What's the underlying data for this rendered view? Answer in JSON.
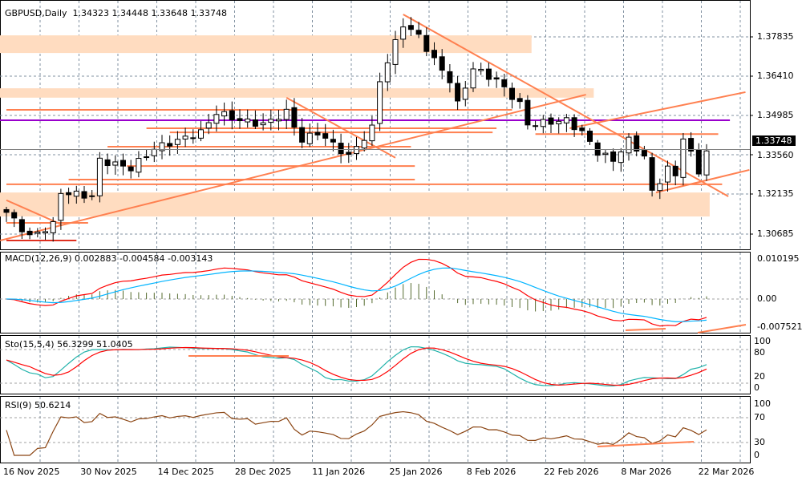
{
  "header": {
    "symbol": "GBPUSD,Daily",
    "open": "1.34323",
    "high": "1.34448",
    "low": "1.33648",
    "close": "1.33748"
  },
  "price_axis": {
    "ticks": [
      "1.37835",
      "1.36410",
      "1.34985",
      "1.33560",
      "1.32135",
      "1.30685"
    ],
    "current": "1.33748"
  },
  "macd": {
    "label": "MACD(12,26,9) 0.002883 -0.004584 -0.003143",
    "ticks": [
      "0.010195",
      "0.00",
      "-0.007521"
    ]
  },
  "sto": {
    "label": "Sto(15,5,4) 56.3299 51.0405",
    "ticks": [
      "100",
      "80",
      "20",
      "0"
    ]
  },
  "rsi": {
    "label": "RSI(9) 50.6214",
    "ticks": [
      "100",
      "70",
      "30",
      "0"
    ]
  },
  "dates": [
    "16 Nov 2025",
    "30 Nov 2025",
    "14 Dec 2025",
    "28 Dec 2025",
    "11 Jan 2026",
    "25 Jan 2026",
    "8 Feb 2026",
    "22 Feb 2026",
    "8 Mar 2026",
    "22 Mar 2026"
  ],
  "colors": {
    "bull": "#ffffff",
    "bear": "#000000",
    "annot": "#ff8050",
    "zone": "#ffdcc0",
    "purple": "#9900cc",
    "macd_main": "#ff0000",
    "macd_signal": "#00b4ff",
    "hist": "#556b2f",
    "sto_k": "#20b2aa",
    "sto_d": "#ff0000",
    "rsi": "#8b4513"
  },
  "chart_data": {
    "type": "candlestick",
    "title": "GBPUSD,Daily",
    "ylim": [
      1.3035,
      1.3915
    ],
    "close_keypoints": [
      [
        0,
        1.3147
      ],
      [
        3,
        1.3059
      ],
      [
        6,
        1.3102
      ],
      [
        7,
        1.322
      ],
      [
        11,
        1.3205
      ],
      [
        12,
        1.3336
      ],
      [
        16,
        1.3307
      ],
      [
        19,
        1.3379
      ],
      [
        25,
        1.3437
      ],
      [
        27,
        1.351
      ],
      [
        30,
        1.3481
      ],
      [
        33,
        1.3466
      ],
      [
        36,
        1.351
      ],
      [
        38,
        1.3408
      ],
      [
        40,
        1.3437
      ],
      [
        44,
        1.335
      ],
      [
        47,
        1.3452
      ],
      [
        48,
        1.3626
      ],
      [
        51,
        1.383
      ],
      [
        53,
        1.3786
      ],
      [
        55,
        1.3699
      ],
      [
        57,
        1.3626
      ],
      [
        58,
        1.3539
      ],
      [
        60,
        1.367
      ],
      [
        63,
        1.3626
      ],
      [
        66,
        1.3539
      ],
      [
        67,
        1.3466
      ],
      [
        72,
        1.3481
      ],
      [
        74,
        1.3437
      ],
      [
        76,
        1.3365
      ],
      [
        78,
        1.3336
      ],
      [
        80,
        1.3408
      ],
      [
        82,
        1.335
      ],
      [
        83,
        1.3219
      ],
      [
        85,
        1.3307
      ],
      [
        86,
        1.3278
      ],
      [
        87,
        1.3423
      ],
      [
        89,
        1.3292
      ],
      [
        90,
        1.3374
      ]
    ],
    "zones": [
      [
        1.3789,
        1.3725,
        0,
        67.5
      ],
      [
        1.3597,
        1.3563,
        0,
        75.5
      ],
      [
        1.3219,
        1.3132,
        0,
        90.4
      ]
    ],
    "hlines": [
      [
        1.3519,
        0,
        65
      ],
      [
        1.3452,
        18,
        63
      ],
      [
        1.3437,
        21,
        62.5
      ],
      [
        1.3385,
        13,
        52
      ],
      [
        1.3315,
        15.5,
        52.5
      ],
      [
        1.3266,
        8,
        52.5
      ],
      [
        1.3249,
        0,
        92
      ],
      [
        1.3109,
        0,
        10.5
      ],
      [
        1.3431,
        68,
        91.5
      ]
    ],
    "hline_dark": [
      1.3045,
      0,
      9
    ],
    "purple_line": [
      1.3481,
      0,
      93
    ],
    "trendlines": [
      [
        -0.8,
        1.3045,
        74.5,
        1.3574
      ],
      [
        51,
        1.3865,
        92.8,
        1.3205
      ],
      [
        72.4,
        1.3452,
        95,
        1.3583
      ],
      [
        0,
        1.3191,
        7,
        1.3104
      ],
      [
        36,
        1.3563,
        50,
        1.3345
      ],
      [
        83.5,
        1.3219,
        95.5,
        1.3301
      ]
    ]
  }
}
